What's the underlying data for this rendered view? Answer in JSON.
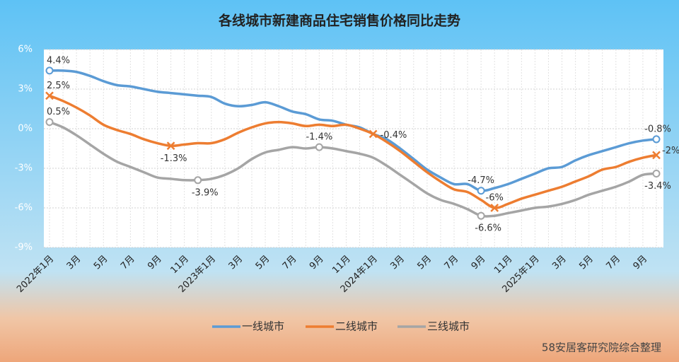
{
  "chart_data": {
    "type": "line",
    "title": "各线城市新建商品住宅销售价格同比走势",
    "source": "58安居客研究院综合整理",
    "categories": [
      "2022年1月",
      null,
      "3月",
      null,
      "5月",
      null,
      "7月",
      null,
      "9月",
      null,
      "11月",
      null,
      "2023年1月",
      null,
      "3月",
      null,
      "5月",
      null,
      "7月",
      null,
      "9月",
      null,
      "11月",
      null,
      "2024年1月",
      null,
      "3月",
      null,
      "5月",
      null,
      "7月",
      null,
      "9月",
      null,
      "11月",
      null,
      "2025年1月",
      null,
      "3月",
      null,
      "5月",
      null,
      "7月",
      null,
      "9月",
      null
    ],
    "series": [
      {
        "name": "一线城市",
        "color": "#5b9bd5",
        "marker": "circle",
        "values": [
          4.4,
          4.4,
          4.3,
          4.0,
          3.6,
          3.3,
          3.2,
          3.0,
          2.8,
          2.7,
          2.6,
          2.5,
          2.4,
          1.9,
          1.7,
          1.8,
          2.0,
          1.7,
          1.3,
          1.1,
          0.7,
          0.6,
          0.3,
          0.1,
          -0.4,
          -0.8,
          -1.5,
          -2.3,
          -3.1,
          -3.7,
          -4.2,
          -4.2,
          -4.7,
          -4.5,
          -4.2,
          -3.8,
          -3.4,
          -3.0,
          -2.9,
          -2.4,
          -2.0,
          -1.7,
          -1.4,
          -1.1,
          -0.9,
          -0.8
        ],
        "value_labels": [
          "4.4%",
          null,
          null,
          null,
          null,
          null,
          null,
          null,
          null,
          null,
          null,
          null,
          null,
          null,
          null,
          null,
          null,
          null,
          null,
          null,
          null,
          null,
          null,
          null,
          null,
          null,
          null,
          null,
          null,
          null,
          null,
          null,
          "-4.7%",
          null,
          null,
          null,
          null,
          null,
          null,
          null,
          null,
          null,
          null,
          null,
          null,
          "-0.8%"
        ]
      },
      {
        "name": "二线城市",
        "color": "#ed7d31",
        "marker": "cross",
        "values": [
          2.5,
          2.1,
          1.6,
          1.0,
          0.3,
          -0.1,
          -0.4,
          -0.8,
          -1.1,
          -1.3,
          -1.2,
          -1.1,
          -1.1,
          -0.8,
          -0.3,
          0.1,
          0.4,
          0.5,
          0.4,
          0.2,
          0.3,
          0.2,
          0.3,
          0.0,
          -0.4,
          -1.0,
          -1.7,
          -2.5,
          -3.3,
          -4.0,
          -4.6,
          -4.8,
          -5.4,
          -6.0,
          -5.7,
          -5.3,
          -5.0,
          -4.7,
          -4.4,
          -4.0,
          -3.6,
          -3.1,
          -2.9,
          -2.5,
          -2.2,
          -2.0
        ],
        "value_labels": [
          "2.5%",
          null,
          null,
          null,
          null,
          null,
          null,
          null,
          null,
          "-1.3%",
          null,
          null,
          null,
          null,
          null,
          null,
          null,
          null,
          null,
          null,
          null,
          null,
          null,
          null,
          "-0.4%",
          null,
          null,
          null,
          null,
          null,
          null,
          null,
          null,
          "-6%",
          null,
          null,
          null,
          null,
          null,
          null,
          null,
          null,
          null,
          null,
          null,
          "-2%"
        ]
      },
      {
        "name": "三线城市",
        "color": "#a5a5a5",
        "marker": "circle",
        "values": [
          0.5,
          0.1,
          -0.5,
          -1.2,
          -1.9,
          -2.5,
          -2.9,
          -3.3,
          -3.7,
          -3.8,
          -3.9,
          -3.9,
          -3.8,
          -3.5,
          -3.0,
          -2.3,
          -1.8,
          -1.6,
          -1.4,
          -1.5,
          -1.4,
          -1.5,
          -1.7,
          -1.9,
          -2.2,
          -2.8,
          -3.5,
          -4.2,
          -4.9,
          -5.4,
          -5.7,
          -6.1,
          -6.6,
          -6.6,
          -6.4,
          -6.2,
          -6.0,
          -5.9,
          -5.7,
          -5.4,
          -5.0,
          -4.7,
          -4.4,
          -4.0,
          -3.5,
          -3.4
        ],
        "value_labels": [
          "0.5%",
          null,
          null,
          null,
          null,
          null,
          null,
          null,
          null,
          null,
          null,
          "-3.9%",
          null,
          null,
          null,
          null,
          null,
          null,
          null,
          null,
          "-1.4%",
          null,
          null,
          null,
          null,
          null,
          null,
          null,
          null,
          null,
          null,
          null,
          "-6.6%",
          null,
          null,
          null,
          null,
          null,
          null,
          null,
          null,
          null,
          null,
          null,
          null,
          "-3.4%"
        ]
      }
    ],
    "ylim": [
      -9,
      6
    ],
    "yticks": [
      {
        "value": -9,
        "label": "-9%"
      },
      {
        "value": -6,
        "label": "-6%"
      },
      {
        "value": -3,
        "label": "-3%"
      },
      {
        "value": 0,
        "label": "0%"
      },
      {
        "value": 3,
        "label": "3%"
      },
      {
        "value": 6,
        "label": "6%"
      }
    ],
    "grid": true,
    "legend": "bottom"
  }
}
